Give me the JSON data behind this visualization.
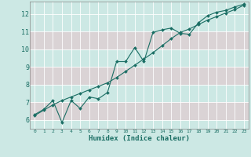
{
  "xlabel": "Humidex (Indice chaleur)",
  "background_color": "#cce8e4",
  "grid_color_major": "#ffffff",
  "grid_color_minor": "#e8c8cc",
  "line_color": "#1a6e64",
  "xlim": [
    -0.5,
    23.5
  ],
  "ylim": [
    5.5,
    12.7
  ],
  "xticks": [
    0,
    1,
    2,
    3,
    4,
    5,
    6,
    7,
    8,
    9,
    10,
    11,
    12,
    13,
    14,
    15,
    16,
    17,
    18,
    19,
    20,
    21,
    22,
    23
  ],
  "yticks": [
    6,
    7,
    8,
    9,
    10,
    11,
    12
  ],
  "line1_x": [
    0,
    1,
    2,
    3,
    4,
    5,
    6,
    7,
    8,
    9,
    10,
    11,
    12,
    13,
    14,
    15,
    16,
    17,
    18,
    19,
    20,
    21,
    22,
    23
  ],
  "line1_y": [
    6.3,
    6.6,
    7.1,
    5.85,
    7.1,
    6.65,
    7.3,
    7.2,
    7.55,
    9.3,
    9.3,
    10.1,
    9.3,
    10.95,
    11.1,
    11.2,
    10.9,
    10.85,
    11.5,
    11.9,
    12.1,
    12.2,
    12.4,
    12.55
  ],
  "line2_x": [
    0,
    1,
    2,
    3,
    4,
    5,
    6,
    7,
    8,
    9,
    10,
    11,
    12,
    13,
    14,
    15,
    16,
    17,
    18,
    19,
    20,
    21,
    22,
    23
  ],
  "line2_y": [
    6.25,
    6.55,
    6.85,
    7.1,
    7.3,
    7.5,
    7.7,
    7.9,
    8.1,
    8.4,
    8.75,
    9.1,
    9.45,
    9.8,
    10.2,
    10.6,
    10.95,
    11.15,
    11.4,
    11.65,
    11.85,
    12.05,
    12.25,
    12.5
  ]
}
